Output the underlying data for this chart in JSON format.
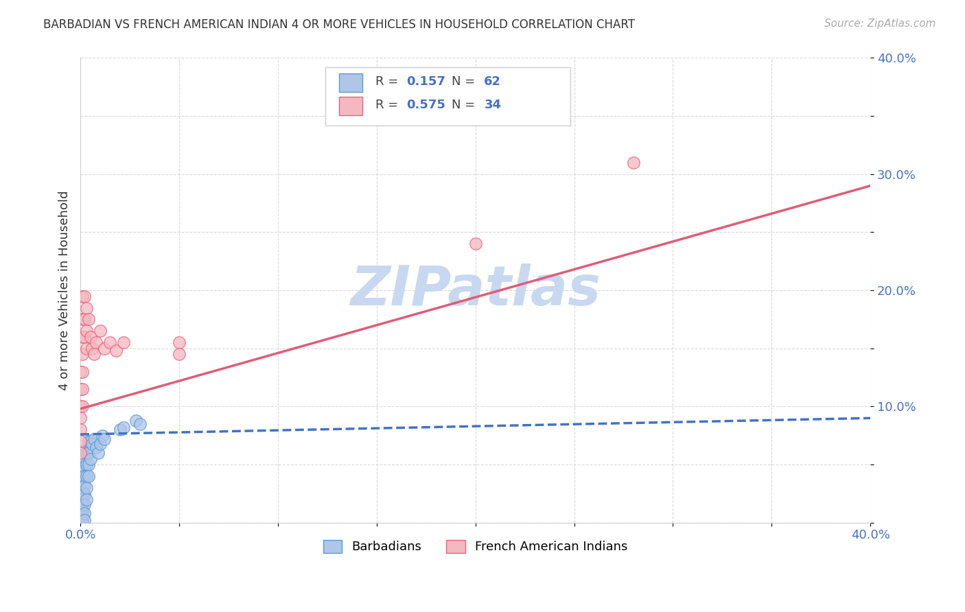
{
  "title": "BARBADIAN VS FRENCH AMERICAN INDIAN 4 OR MORE VEHICLES IN HOUSEHOLD CORRELATION CHART",
  "source": "Source: ZipAtlas.com",
  "ylabel": "4 or more Vehicles in Household",
  "xlim": [
    0.0,
    0.4
  ],
  "ylim": [
    0.0,
    0.4
  ],
  "xticks": [
    0.0,
    0.05,
    0.1,
    0.15,
    0.2,
    0.25,
    0.3,
    0.35,
    0.4
  ],
  "yticks": [
    0.0,
    0.05,
    0.1,
    0.15,
    0.2,
    0.25,
    0.3,
    0.35,
    0.4
  ],
  "xticklabels": [
    "0.0%",
    "",
    "",
    "",
    "",
    "",
    "",
    "",
    "40.0%"
  ],
  "yticklabels": [
    "",
    "",
    "10.0%",
    "",
    "20.0%",
    "",
    "30.0%",
    "",
    "40.0%"
  ],
  "barbadian_color": "#aec6e8",
  "barbadian_edge": "#5b9bd5",
  "french_color": "#f4b8c1",
  "french_edge": "#e8627a",
  "barbadian_line_color": "#4472c4",
  "french_line_color": "#e05c78",
  "grid_color": "#d0d0d0",
  "watermark": "ZIPatlas",
  "watermark_color": "#c8d8f0",
  "background_color": "#ffffff",
  "barbadian_points": [
    [
      0.0,
      0.05
    ],
    [
      0.0,
      0.045
    ],
    [
      0.0,
      0.04
    ],
    [
      0.0,
      0.038
    ],
    [
      0.0,
      0.035
    ],
    [
      0.0,
      0.03
    ],
    [
      0.0,
      0.025
    ],
    [
      0.0,
      0.02
    ],
    [
      0.0,
      0.015
    ],
    [
      0.0,
      0.012
    ],
    [
      0.0,
      0.01
    ],
    [
      0.0,
      0.008
    ],
    [
      0.0,
      0.006
    ],
    [
      0.0,
      0.004
    ],
    [
      0.0,
      0.002
    ],
    [
      0.0,
      0.0
    ],
    [
      0.001,
      0.062
    ],
    [
      0.001,
      0.058
    ],
    [
      0.001,
      0.055
    ],
    [
      0.001,
      0.052
    ],
    [
      0.001,
      0.048
    ],
    [
      0.001,
      0.044
    ],
    [
      0.001,
      0.04
    ],
    [
      0.001,
      0.035
    ],
    [
      0.001,
      0.03
    ],
    [
      0.001,
      0.025
    ],
    [
      0.001,
      0.02
    ],
    [
      0.001,
      0.015
    ],
    [
      0.001,
      0.01
    ],
    [
      0.001,
      0.006
    ],
    [
      0.001,
      0.003
    ],
    [
      0.001,
      0.0
    ],
    [
      0.002,
      0.055
    ],
    [
      0.002,
      0.048
    ],
    [
      0.002,
      0.04
    ],
    [
      0.002,
      0.032
    ],
    [
      0.002,
      0.024
    ],
    [
      0.002,
      0.016
    ],
    [
      0.002,
      0.008
    ],
    [
      0.002,
      0.002
    ],
    [
      0.003,
      0.06
    ],
    [
      0.003,
      0.05
    ],
    [
      0.003,
      0.04
    ],
    [
      0.003,
      0.03
    ],
    [
      0.003,
      0.02
    ],
    [
      0.004,
      0.07
    ],
    [
      0.004,
      0.06
    ],
    [
      0.004,
      0.05
    ],
    [
      0.004,
      0.04
    ],
    [
      0.005,
      0.07
    ],
    [
      0.005,
      0.055
    ],
    [
      0.006,
      0.068
    ],
    [
      0.007,
      0.072
    ],
    [
      0.008,
      0.065
    ],
    [
      0.009,
      0.06
    ],
    [
      0.01,
      0.068
    ],
    [
      0.011,
      0.075
    ],
    [
      0.012,
      0.072
    ],
    [
      0.02,
      0.08
    ],
    [
      0.022,
      0.082
    ],
    [
      0.028,
      0.088
    ],
    [
      0.03,
      0.085
    ]
  ],
  "french_points": [
    [
      0.0,
      0.13
    ],
    [
      0.0,
      0.115
    ],
    [
      0.0,
      0.1
    ],
    [
      0.0,
      0.09
    ],
    [
      0.0,
      0.08
    ],
    [
      0.0,
      0.07
    ],
    [
      0.0,
      0.06
    ],
    [
      0.001,
      0.195
    ],
    [
      0.001,
      0.175
    ],
    [
      0.001,
      0.16
    ],
    [
      0.001,
      0.145
    ],
    [
      0.001,
      0.13
    ],
    [
      0.001,
      0.115
    ],
    [
      0.001,
      0.1
    ],
    [
      0.002,
      0.195
    ],
    [
      0.002,
      0.175
    ],
    [
      0.002,
      0.16
    ],
    [
      0.003,
      0.185
    ],
    [
      0.003,
      0.165
    ],
    [
      0.003,
      0.15
    ],
    [
      0.004,
      0.175
    ],
    [
      0.005,
      0.16
    ],
    [
      0.006,
      0.15
    ],
    [
      0.007,
      0.145
    ],
    [
      0.008,
      0.155
    ],
    [
      0.01,
      0.165
    ],
    [
      0.012,
      0.15
    ],
    [
      0.015,
      0.155
    ],
    [
      0.018,
      0.148
    ],
    [
      0.022,
      0.155
    ],
    [
      0.05,
      0.155
    ],
    [
      0.05,
      0.145
    ],
    [
      0.2,
      0.24
    ],
    [
      0.28,
      0.31
    ]
  ],
  "barb_line_x": [
    0.0,
    0.4
  ],
  "barb_line_y": [
    0.076,
    0.09
  ],
  "french_line_x": [
    0.0,
    0.4
  ],
  "french_line_y": [
    0.098,
    0.29
  ]
}
